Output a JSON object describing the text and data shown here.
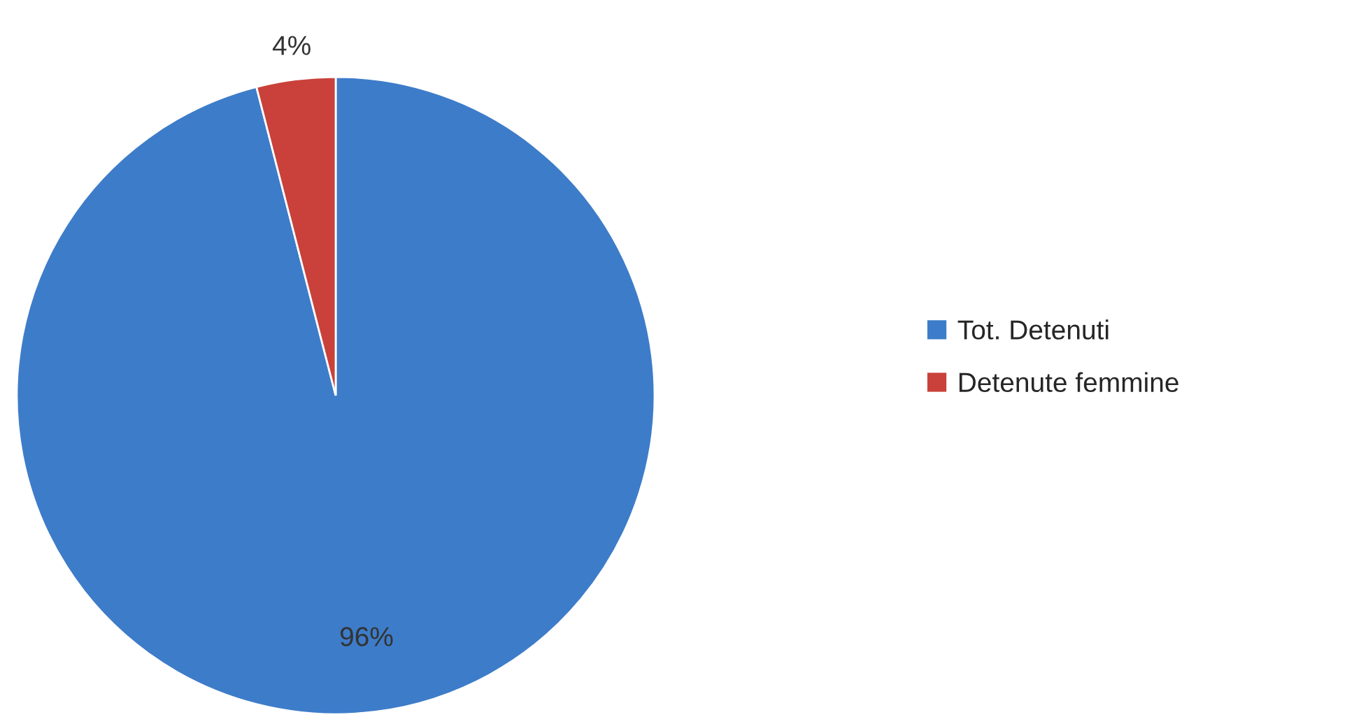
{
  "chart_data": {
    "type": "pie",
    "categories": [
      "Tot. Detenuti",
      "Detenute femmine"
    ],
    "values": [
      96,
      4
    ],
    "colors": [
      "#3d7cc9",
      "#c9413a"
    ],
    "value_labels": [
      "96%",
      "4%"
    ],
    "legend": "right"
  }
}
